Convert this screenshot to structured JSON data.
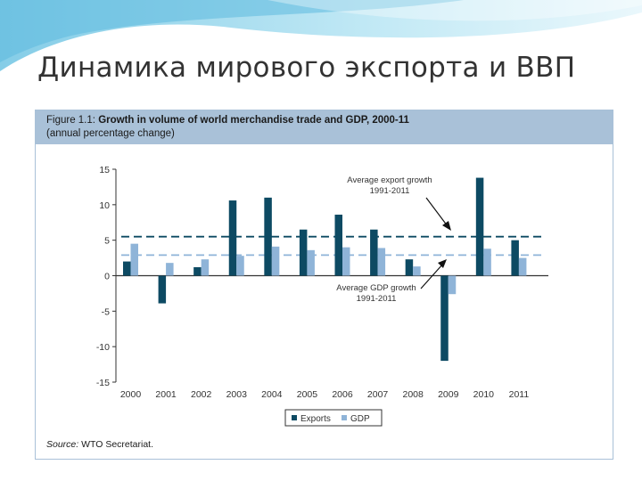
{
  "slide": {
    "title": "Динамика мирового экспорта и ВВП"
  },
  "figure": {
    "label": "Figure 1.1:",
    "title": "Growth in volume of world merchandise trade and GDP, 2000-11",
    "subtitle": "(annual percentage change)",
    "source_label": "Source:",
    "source_text": "WTO Secretariat."
  },
  "colors": {
    "exports": "#0d4a63",
    "gdp": "#8fb4d8",
    "header": "#a9c1d8",
    "deco": "#8ed3ea"
  },
  "chart_data": {
    "type": "bar",
    "categories": [
      "2000",
      "2001",
      "2002",
      "2003",
      "2004",
      "2005",
      "2006",
      "2007",
      "2008",
      "2009",
      "2010",
      "2011"
    ],
    "series": [
      {
        "name": "Exports",
        "values": [
          2.0,
          -3.9,
          1.2,
          10.6,
          11.0,
          6.5,
          8.6,
          6.5,
          2.3,
          -12.0,
          13.8,
          5.0
        ]
      },
      {
        "name": "GDP",
        "values": [
          4.5,
          1.8,
          2.3,
          2.8,
          4.1,
          3.6,
          4.0,
          3.9,
          1.3,
          -2.6,
          3.8,
          2.5
        ]
      }
    ],
    "ylim": [
      -15,
      15
    ],
    "yticks": [
      "15",
      "10",
      "5",
      "0",
      "-5",
      "-10",
      "-15"
    ],
    "reference_lines": [
      {
        "name": "Average export growth 1991-2011",
        "value": 5.5,
        "label_lines": [
          "Average export growth",
          "1991-2011"
        ],
        "series": "Exports"
      },
      {
        "name": "Average GDP growth 1991-2011",
        "value": 2.9,
        "label_lines": [
          "Average GDP growth",
          "1991-2011"
        ],
        "series": "GDP"
      }
    ],
    "legend_position": "bottom-center",
    "grid": false
  }
}
